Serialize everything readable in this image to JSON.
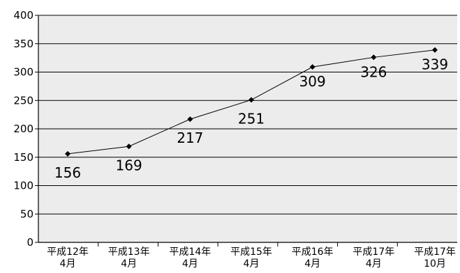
{
  "chart_data": {
    "type": "line",
    "categories": [
      [
        "平成12年",
        "4月"
      ],
      [
        "平成13年",
        "4月"
      ],
      [
        "平成14年",
        "4月"
      ],
      [
        "平成15年",
        "4月"
      ],
      [
        "平成16年",
        "4月"
      ],
      [
        "平成17年",
        "4月"
      ],
      [
        "平成17年",
        "10月"
      ]
    ],
    "values": [
      156,
      169,
      217,
      251,
      309,
      326,
      339
    ],
    "ylim": [
      0,
      400
    ],
    "yticks": [
      0,
      50,
      100,
      150,
      200,
      250,
      300,
      350,
      400
    ],
    "grid": true,
    "plot_background": "#ececec",
    "line_color": "#000000",
    "marker": "diamond",
    "data_labels": true
  }
}
